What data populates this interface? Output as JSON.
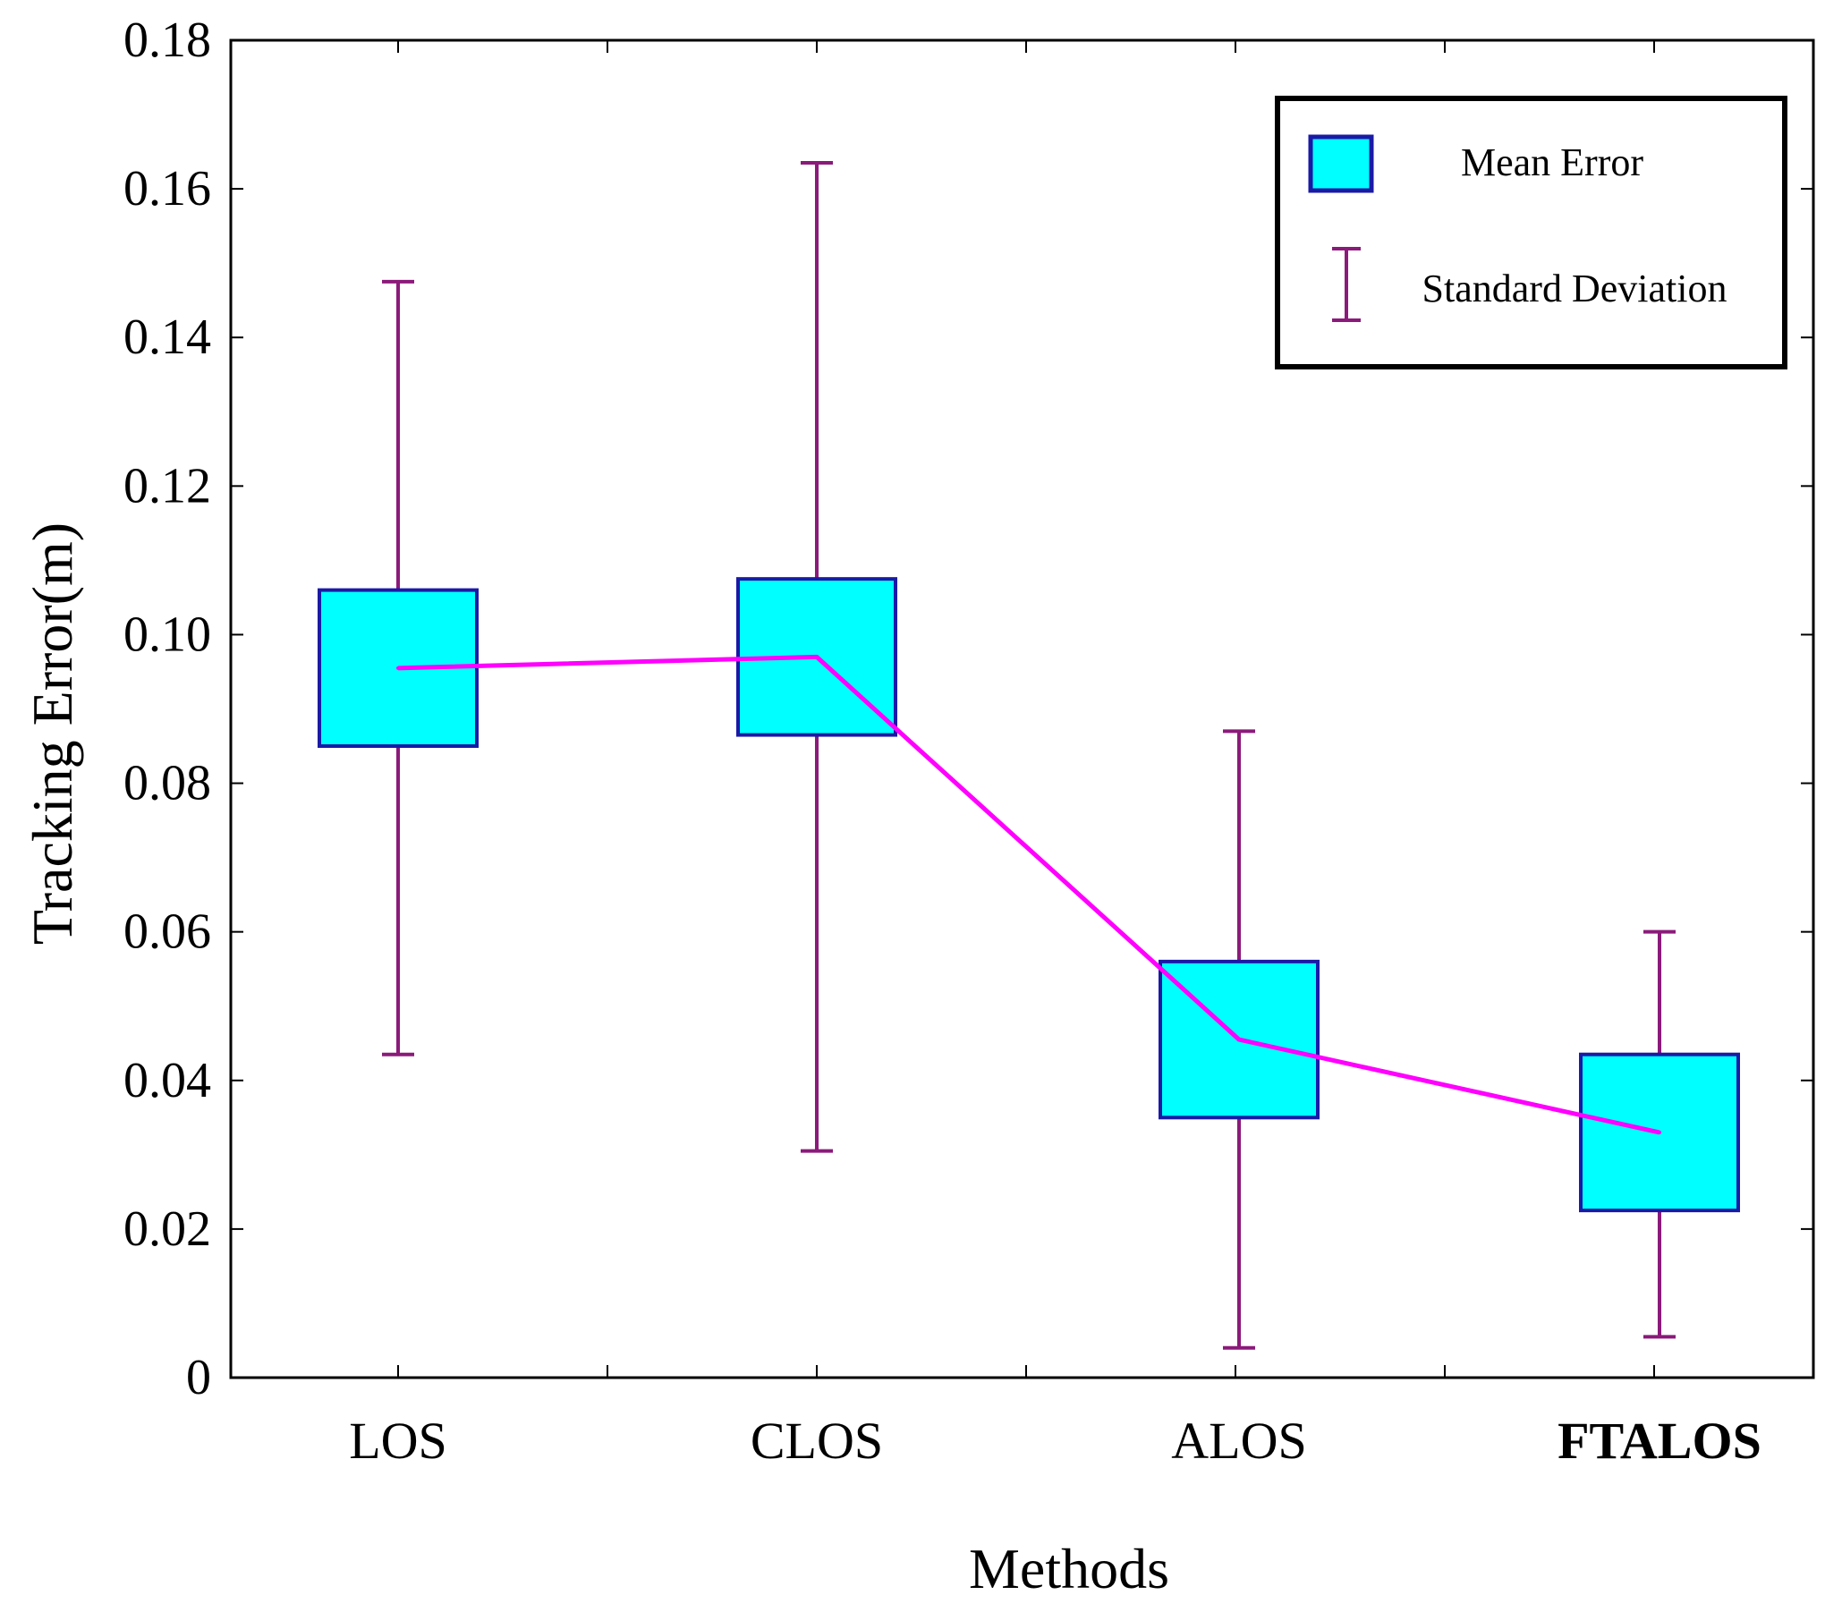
{
  "chart_data": {
    "type": "bar",
    "title": "",
    "xlabel": "Methods",
    "ylabel": "Tracking Error(m)",
    "ylim": [
      0,
      0.18
    ],
    "yticks": [
      0,
      0.02,
      0.04,
      0.06,
      0.08,
      0.1,
      0.12,
      0.14,
      0.16,
      0.18
    ],
    "ytick_labels": [
      "0",
      "0.02",
      "0.04",
      "0.06",
      "0.08",
      "0.10",
      "0.12",
      "0.14",
      "0.16",
      "0.18"
    ],
    "categories": [
      "LOS",
      "CLOS",
      "ALOS",
      "FTALOS"
    ],
    "bold_categories": [
      "FTALOS"
    ],
    "series": [
      {
        "name": "Mean Error",
        "type": "box",
        "mean": [
          0.0955,
          0.097,
          0.0455,
          0.033
        ],
        "box_low": [
          0.085,
          0.0865,
          0.035,
          0.0225
        ],
        "box_high": [
          0.106,
          0.1075,
          0.056,
          0.0435
        ]
      },
      {
        "name": "Standard Deviation",
        "type": "errorbar",
        "low": [
          0.0435,
          0.0305,
          0.004,
          0.0055
        ],
        "high": [
          0.1475,
          0.1635,
          0.087,
          0.06
        ]
      }
    ],
    "legend": {
      "position": "top-right",
      "entries": [
        "Mean Error",
        "Standard Deviation"
      ]
    },
    "colors": {
      "box_fill": "#00ffff",
      "box_edge": "#1a1aa6",
      "mean_line": "#ff00ff",
      "errorbar": "#8b1a7a",
      "axis": "#000000"
    }
  }
}
